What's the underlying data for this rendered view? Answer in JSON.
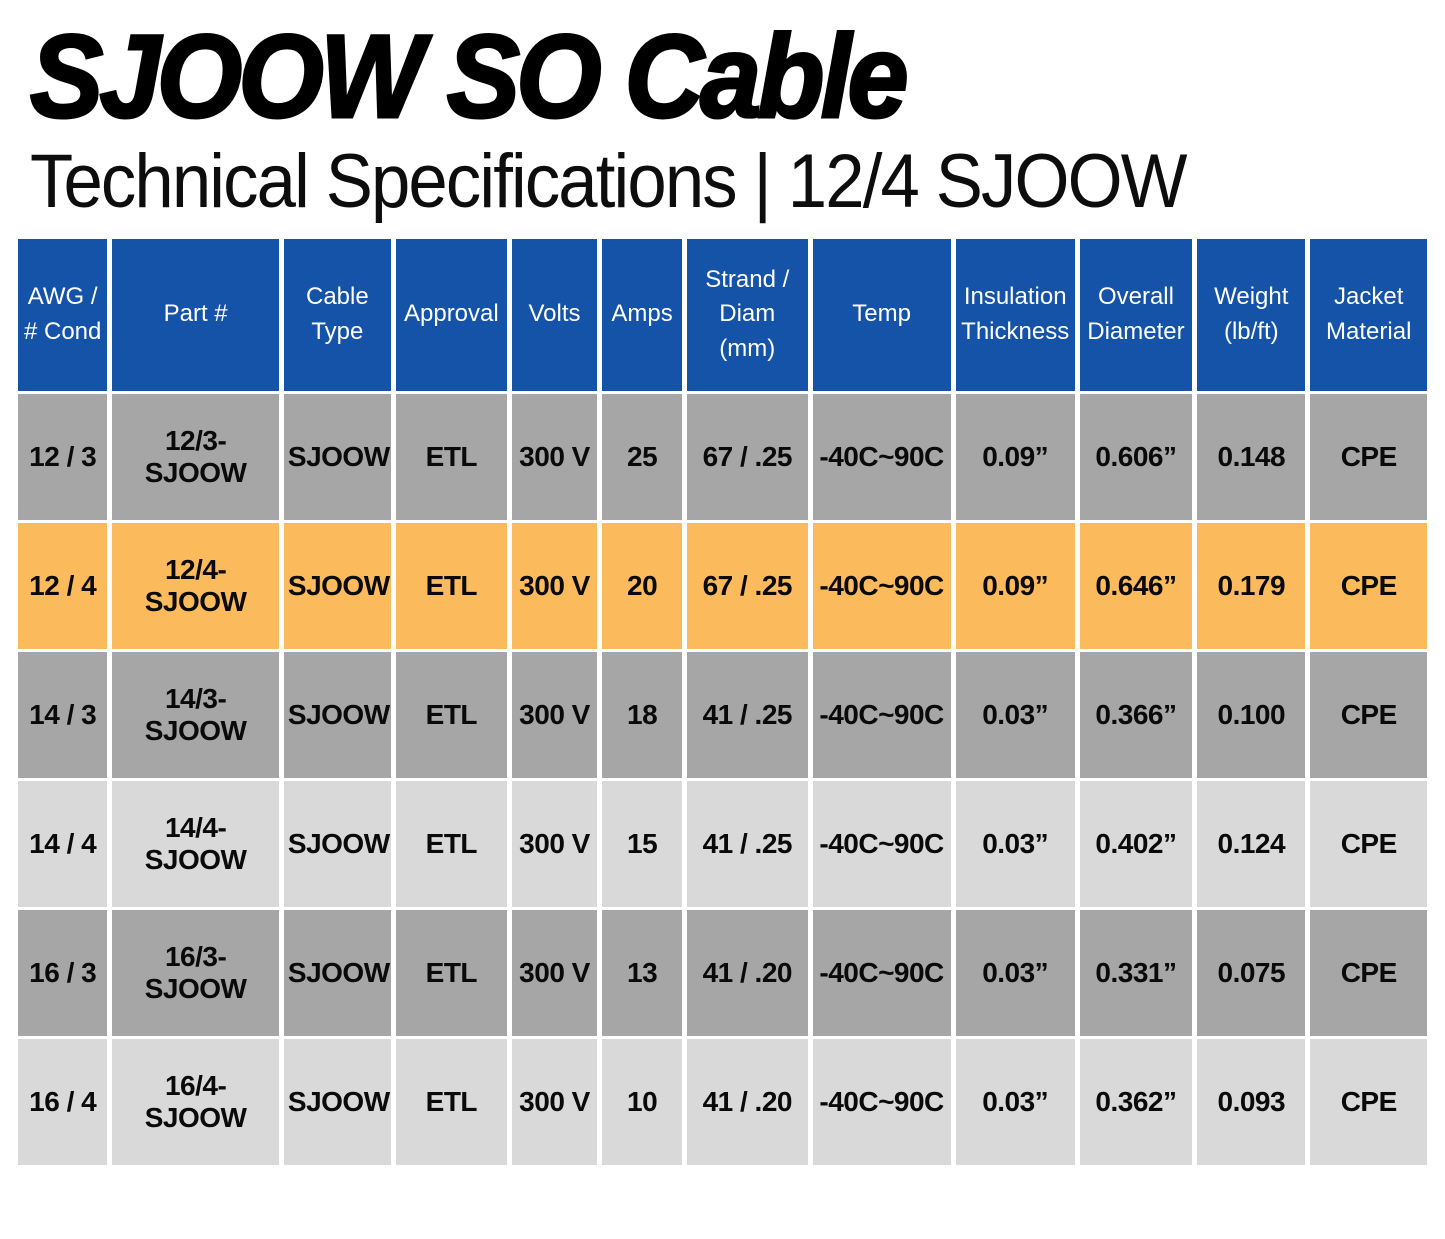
{
  "header": {
    "title": "SJOOW SO Cable",
    "subtitle": "Technical Specifications | 12/4 SJOOW"
  },
  "table": {
    "columns": [
      "AWG / # Cond",
      "Part #",
      "Cable Type",
      "Approval",
      "Volts",
      "Amps",
      "Strand / Diam (mm)",
      "Temp",
      "Insulation Thickness",
      "Overall Diameter",
      "Weight (lb/ft)",
      "Jacket Material"
    ],
    "rows": [
      {
        "style": "dark",
        "cells": [
          "12 / 3",
          "12/3-SJOOW",
          "SJOOW",
          "ETL",
          "300 V",
          "25",
          "67 / .25",
          "-40C~90C",
          "0.09”",
          "0.606”",
          "0.148",
          "CPE"
        ]
      },
      {
        "style": "highlight",
        "cells": [
          "12 / 4",
          "12/4-SJOOW",
          "SJOOW",
          "ETL",
          "300 V",
          "20",
          "67 / .25",
          "-40C~90C",
          "0.09”",
          "0.646”",
          "0.179",
          "CPE"
        ]
      },
      {
        "style": "dark",
        "cells": [
          "14 / 3",
          "14/3-SJOOW",
          "SJOOW",
          "ETL",
          "300 V",
          "18",
          "41 / .25",
          "-40C~90C",
          "0.03”",
          "0.366”",
          "0.100",
          "CPE"
        ]
      },
      {
        "style": "light",
        "cells": [
          "14 / 4",
          "14/4-SJOOW",
          "SJOOW",
          "ETL",
          "300 V",
          "15",
          "41 / .25",
          "-40C~90C",
          "0.03”",
          "0.402”",
          "0.124",
          "CPE"
        ]
      },
      {
        "style": "dark",
        "cells": [
          "16 / 3",
          "16/3-SJOOW",
          "SJOOW",
          "ETL",
          "300 V",
          "13",
          "41 / .20",
          "-40C~90C",
          "0.03”",
          "0.331”",
          "0.075",
          "CPE"
        ]
      },
      {
        "style": "light",
        "cells": [
          "16 / 4",
          "16/4-SJOOW",
          "SJOOW",
          "ETL",
          "300 V",
          "10",
          "41 / .20",
          "-40C~90C",
          "0.03”",
          "0.362”",
          "0.093",
          "CPE"
        ]
      }
    ]
  },
  "colors": {
    "header_blue": "#1553A8",
    "row_dark": "#A6A6A6",
    "row_light": "#D9D9D9",
    "row_highlight": "#FBBA5C",
    "header_text": "#FFFFFF",
    "body_text": "#0A0A0A"
  }
}
